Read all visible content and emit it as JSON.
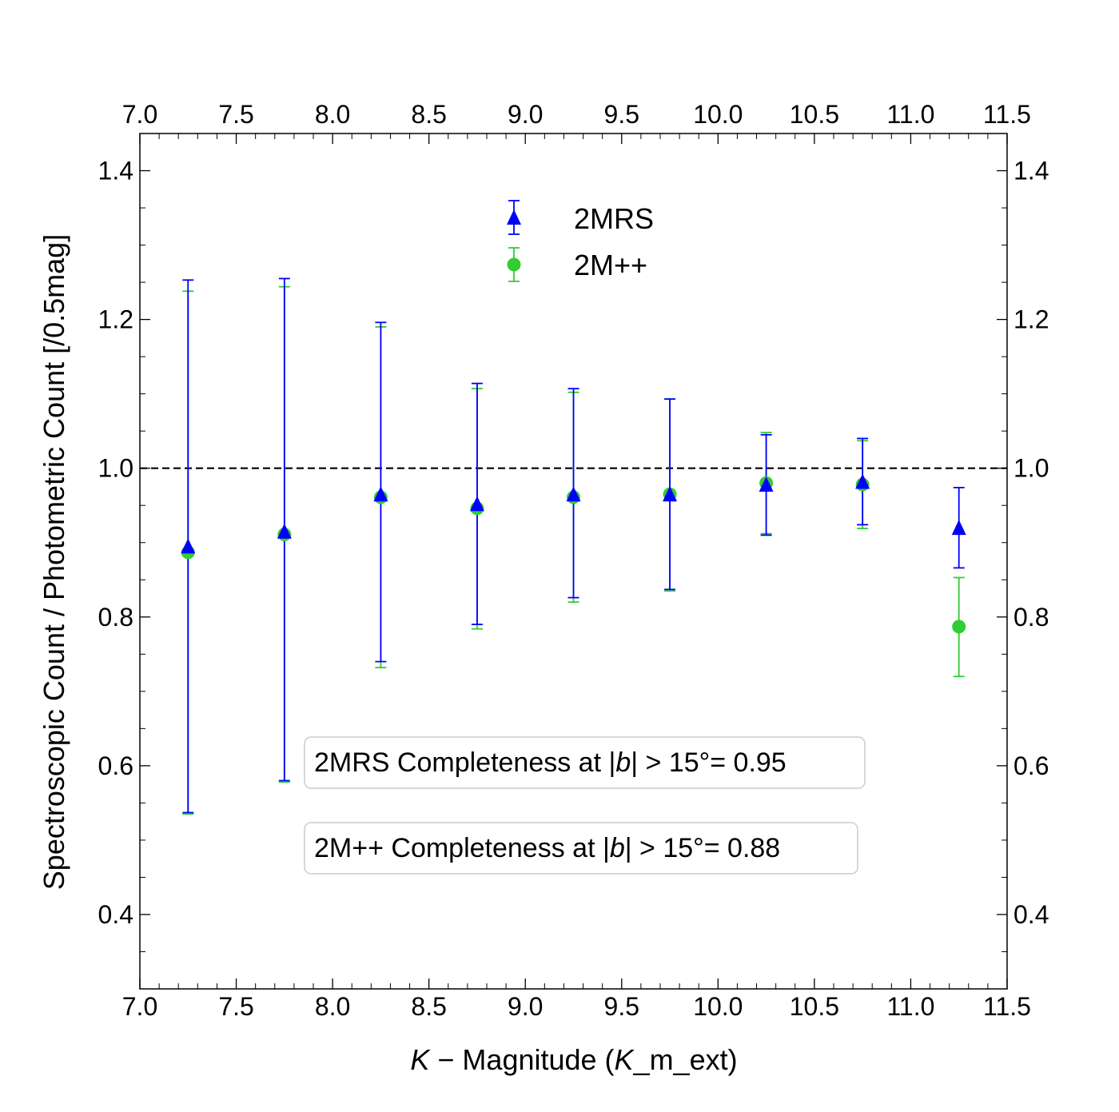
{
  "chart_data": {
    "type": "scatter",
    "title": "",
    "xlabel": "K − Magnitude (K_m_ext)",
    "xlabel_parts": {
      "italic_symbol": "K",
      "middle": " − Magnitude (",
      "italic_symbol2": "K",
      "suffix": "_m_ext)"
    },
    "ylabel": "Spectroscopic Count / Photometric Count [/0.5mag]",
    "xlim": [
      7.0,
      11.5
    ],
    "ylim": [
      0.3,
      1.45
    ],
    "x_ticks": [
      "7.0",
      "7.5",
      "8.0",
      "8.5",
      "9.0",
      "9.5",
      "10.0",
      "10.5",
      "11.0",
      "11.5"
    ],
    "x_tick_values": [
      7.0,
      7.5,
      8.0,
      8.5,
      9.0,
      9.5,
      10.0,
      10.5,
      11.0,
      11.5
    ],
    "y_ticks": [
      "0.4",
      "0.6",
      "0.8",
      "1.0",
      "1.2",
      "1.4"
    ],
    "y_tick_values": [
      0.4,
      0.6,
      0.8,
      1.0,
      1.2,
      1.4
    ],
    "reference_line": {
      "y": 1.0,
      "style": "dashed",
      "color": "#000000"
    },
    "series": [
      {
        "name": "2MRS",
        "marker": "triangle",
        "color": "#0000ff",
        "x": [
          7.25,
          7.75,
          8.25,
          8.75,
          9.25,
          9.75,
          10.25,
          10.75,
          11.25
        ],
        "y": [
          0.895,
          0.915,
          0.965,
          0.952,
          0.965,
          0.965,
          0.978,
          0.982,
          0.92
        ],
        "err_low": [
          0.537,
          0.58,
          0.74,
          0.79,
          0.826,
          0.837,
          0.91,
          0.924,
          0.866
        ],
        "err_high": [
          1.253,
          1.255,
          1.196,
          1.114,
          1.107,
          1.093,
          1.045,
          1.04,
          0.974
        ]
      },
      {
        "name": "2M++",
        "marker": "circle",
        "color": "#32cd32",
        "x": [
          7.25,
          7.75,
          8.25,
          8.75,
          9.25,
          9.75,
          10.25,
          10.75,
          11.25
        ],
        "y": [
          0.887,
          0.911,
          0.961,
          0.946,
          0.961,
          0.965,
          0.98,
          0.978,
          0.787
        ],
        "err_low": [
          0.535,
          0.578,
          0.732,
          0.784,
          0.82,
          0.835,
          0.912,
          0.919,
          0.72
        ],
        "err_high": [
          1.238,
          1.244,
          1.19,
          1.107,
          1.102,
          1.093,
          1.048,
          1.037,
          0.853
        ]
      }
    ],
    "legend": {
      "placement": "top-center",
      "entries": [
        "2MRS",
        "2M++"
      ]
    },
    "annotations": [
      {
        "prefix": "2MRS Completeness at |",
        "symbol": "b",
        "suffix": "| > 15°= 0.95"
      },
      {
        "prefix": "2M++ Completeness at |",
        "symbol": "b",
        "suffix": "| > 15°= 0.88"
      }
    ],
    "grid": false
  }
}
